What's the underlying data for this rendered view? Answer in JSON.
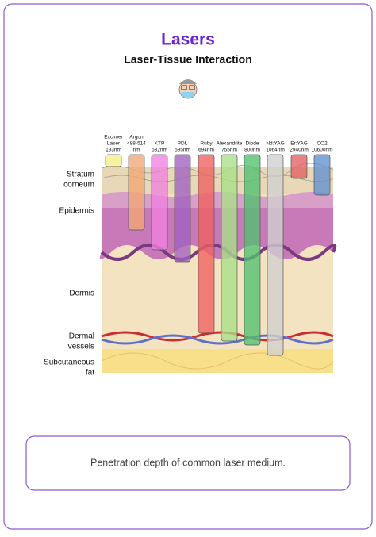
{
  "header": {
    "title": "Lasers",
    "subtitle": "Laser-Tissue Interaction"
  },
  "lasers": [
    {
      "lines": [
        "Excimer",
        "Laser",
        "193nm"
      ]
    },
    {
      "lines": [
        "Argon",
        "488-514",
        "nm"
      ]
    },
    {
      "lines": [
        "KTP",
        "532nm"
      ]
    },
    {
      "lines": [
        "PDL",
        "595nm"
      ]
    },
    {
      "lines": [
        "Ruby",
        "694nm"
      ]
    },
    {
      "lines": [
        "Alexandrite",
        "755nm"
      ]
    },
    {
      "lines": [
        "Diode",
        "800nm"
      ]
    },
    {
      "lines": [
        "Nd:YAG",
        "1064nm"
      ]
    },
    {
      "lines": [
        "Er:YAG",
        "2940nm"
      ]
    },
    {
      "lines": [
        "CO2",
        "10600nm"
      ]
    }
  ],
  "layers": [
    {
      "lines": [
        "Stratum",
        "corneum"
      ]
    },
    {
      "lines": [
        "Epidermis"
      ]
    },
    {
      "lines": [
        "Dermis"
      ]
    },
    {
      "lines": [
        "Dermal",
        "vessels"
      ]
    },
    {
      "lines": [
        "Subcutaneous",
        "fat"
      ]
    }
  ],
  "caption": "Penetration depth of common laser medium."
}
